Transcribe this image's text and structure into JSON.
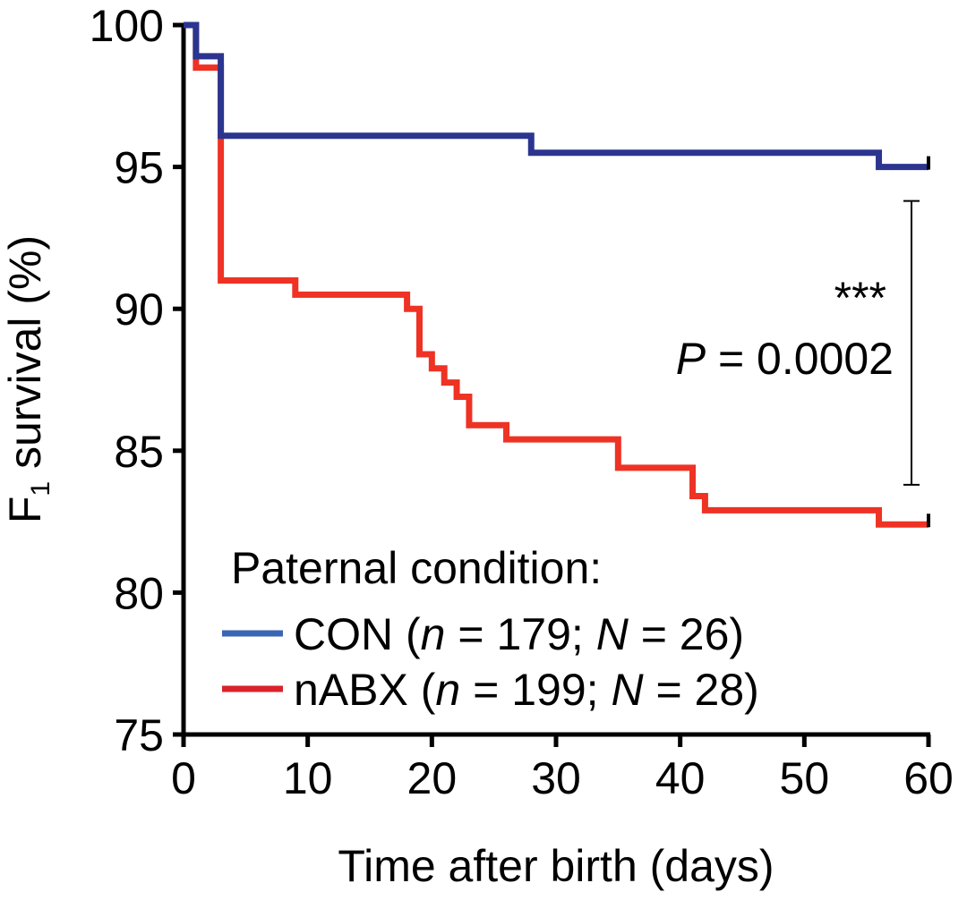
{
  "chart_data": {
    "type": "line",
    "subtype": "kaplan-meier-step",
    "title": "",
    "xlabel": "Time after birth (days)",
    "ylabel_main": "F",
    "ylabel_sub": "1",
    "ylabel_rest": " survival (%)",
    "xlim": [
      0,
      60
    ],
    "ylim": [
      75,
      100
    ],
    "xticks": [
      0,
      10,
      20,
      30,
      40,
      50,
      60
    ],
    "yticks": [
      75,
      80,
      85,
      90,
      95,
      100
    ],
    "grid": false,
    "legend": {
      "title": "Paternal condition:",
      "placement": "bottom-center",
      "entries": [
        {
          "name": "CON",
          "n": "179",
          "N": "26",
          "color": "#3a66b5"
        },
        {
          "name": "nABX",
          "n": "199",
          "N": "28",
          "color": "#d9222a"
        }
      ]
    },
    "series": [
      {
        "name": "CON",
        "color": "#2b3590",
        "censored_at_end": true,
        "steps": [
          [
            0,
            100
          ],
          [
            1,
            98.9
          ],
          [
            3,
            96.1
          ],
          [
            28,
            95.5
          ],
          [
            56,
            95.0
          ],
          [
            60,
            95.0
          ]
        ]
      },
      {
        "name": "nABX",
        "color": "#ee3224",
        "censored_at_end": true,
        "steps": [
          [
            0,
            100
          ],
          [
            1,
            98.5
          ],
          [
            3,
            91.0
          ],
          [
            9,
            90.5
          ],
          [
            18,
            90.0
          ],
          [
            19,
            88.4
          ],
          [
            20,
            87.9
          ],
          [
            21,
            87.4
          ],
          [
            22,
            86.9
          ],
          [
            23,
            85.9
          ],
          [
            26,
            85.4
          ],
          [
            35,
            84.4
          ],
          [
            41,
            83.4
          ],
          [
            42,
            82.9
          ],
          [
            56,
            82.4
          ],
          [
            60,
            82.4
          ]
        ]
      }
    ],
    "annotation": {
      "stars": "***",
      "p_label": "P",
      "p_text": " = 0.0002",
      "bracket_range": [
        83.8,
        93.8
      ]
    }
  }
}
